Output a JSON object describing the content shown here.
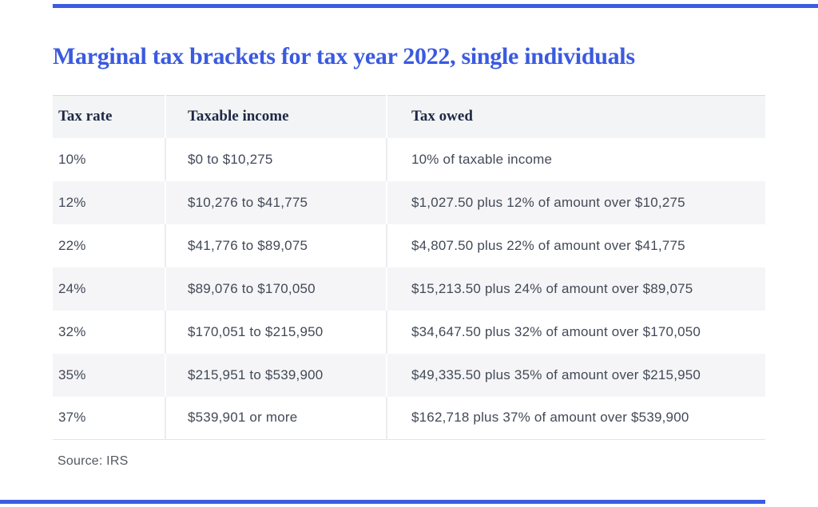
{
  "page": {
    "title": "Marginal tax brackets for tax year 2022, single individuals",
    "source_note": "Source: IRS"
  },
  "colors": {
    "accent_line_blue": "#3C5CE1",
    "title_blue": "#3A5ADF",
    "header_text_navy": "#1E2945",
    "cell_text": "#424957",
    "zebra_row_gray": "#f5f5f7",
    "header_row_gray": "#f3f4f6"
  },
  "chart_data": {
    "type": "table",
    "title": "Marginal tax brackets for tax year 2022, single individuals",
    "columns": [
      "Tax rate",
      "Taxable income",
      "Tax owed"
    ],
    "rows": [
      [
        "10%",
        "$0 to $10,275",
        "10% of taxable income"
      ],
      [
        "12%",
        "$10,276 to $41,775",
        "$1,027.50 plus 12% of amount over $10,275"
      ],
      [
        "22%",
        "$41,776 to $89,075",
        "$4,807.50 plus 22% of amount over $41,775"
      ],
      [
        "24%",
        "$89,076 to $170,050",
        "$15,213.50 plus 24% of amount over $89,075"
      ],
      [
        "32%",
        "$170,051 to $215,950",
        "$34,647.50 plus 32% of amount over $170,050"
      ],
      [
        "35%",
        "$215,951 to $539,900",
        "$49,335.50 plus 35% of amount over $215,950"
      ],
      [
        "37%",
        "$539,901 or more",
        "$162,718 plus 37% of amount over $539,900"
      ]
    ],
    "source": "Source: IRS",
    "layout": {
      "zebra_striping": true,
      "header_position": "top",
      "grid": "column-dividers-only"
    }
  }
}
